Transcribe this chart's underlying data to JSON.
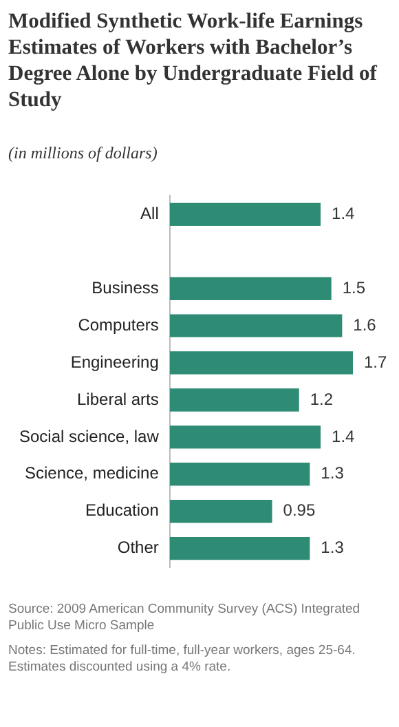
{
  "chart_data": {
    "type": "bar",
    "orientation": "horizontal",
    "title": "Modified Synthetic Work-life Earnings Estimates of Workers with Bachelor’s Degree Alone by Undergraduate Field of Study",
    "subtitle": "(in millions of dollars)",
    "categories": [
      "All",
      null,
      "Business",
      "Computers",
      "Engineering",
      "Liberal arts",
      "Social science, law",
      "Science, medicine",
      "Education",
      "Other"
    ],
    "values": [
      1.4,
      null,
      1.5,
      1.6,
      1.7,
      1.2,
      1.4,
      1.3,
      0.95,
      1.3
    ],
    "color": "#2e8b74",
    "data_labels": true,
    "legend": false,
    "tick_labels": "y",
    "annotations": [
      "Source: 2009 American Community Survey (ACS) Integrated Public Use Micro Sample",
      "Notes: Estimated for full-time, full-year workers, ages 25-64. Estimates discounted using a 4% rate."
    ]
  }
}
